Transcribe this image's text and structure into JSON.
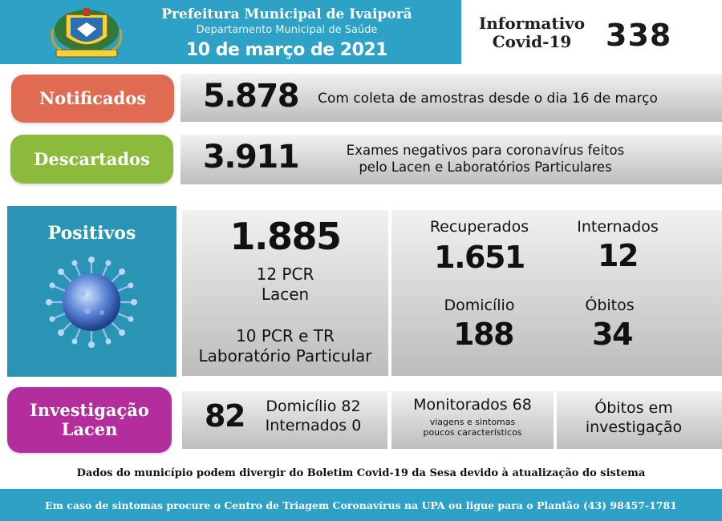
{
  "header": {
    "title": "Prefeitura Municipal de Ivaiporã",
    "subtitle": "Departamento Municipal de Saúde",
    "date": "10 de março de 2021",
    "info_line1": "Informativo",
    "info_line2": "Covid-19",
    "issue_number": "338"
  },
  "notificados": {
    "label": "Notificados",
    "value": "5.878",
    "description": "Com coleta de amostras desde o dia 16 de março",
    "color": "#e06b52"
  },
  "descartados": {
    "label": "Descartados",
    "value": "3.911",
    "description_line1": "Exames negativos para coronavírus feitos",
    "description_line2": "pelo Lacen e Laboratórios Particulares",
    "color": "#8cba3c"
  },
  "positivos": {
    "label": "Positivos",
    "value": "1.885",
    "lacen_line1": "12 PCR",
    "lacen_line2": "Lacen",
    "lab_line1": "10 PCR e TR",
    "lab_line2": "Laboratório Particular",
    "recuperados_label": "Recuperados",
    "recuperados_value": "1.651",
    "internados_label": "Internados",
    "internados_value": "12",
    "domicilio_label": "Domicílio",
    "domicilio_value": "188",
    "obitos_label": "Óbitos",
    "obitos_value": "34",
    "color": "#2994b3"
  },
  "investigacao": {
    "label_line1": "Investigação",
    "label_line2": "Lacen",
    "value": "82",
    "domicilio": "Domicílio 82",
    "internados": "Internados 0",
    "monitorados": "Monitorados 68",
    "monitorados_note_line1": "viagens e sintomas",
    "monitorados_note_line2": "poucos característicos",
    "obitos_line1": "Óbitos em",
    "obitos_line2": "investigação",
    "color": "#b32d9c"
  },
  "note": "Dados do município podem divergir do Boletim Covid-19 da Sesa devido à atualização do sistema",
  "footer": "Em caso de sintomas procure o Centro de Triagem Coronavírus na UPA ou ligue para o Plantão (43) 98457-1781",
  "colors": {
    "header_blue": "#2ea1c7"
  }
}
